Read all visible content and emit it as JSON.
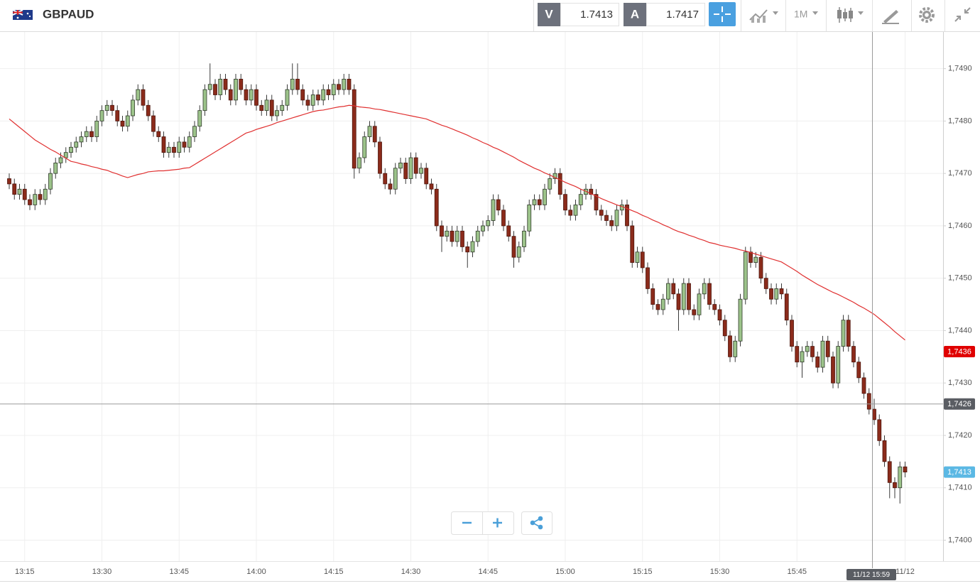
{
  "toolbar": {
    "symbol": "GBPAUD",
    "sell_label": "V",
    "sell_price": "1.7413",
    "buy_label": "A",
    "buy_price": "1.7417",
    "timeframe": "1M"
  },
  "chart_data": {
    "type": "candlestick",
    "categories": [
      null,
      null,
      null,
      "13:15",
      null,
      null,
      null,
      null,
      null,
      null,
      null,
      null,
      null,
      null,
      null,
      null,
      null,
      null,
      "13:30",
      null,
      null,
      null,
      null,
      null,
      null,
      null,
      null,
      null,
      null,
      null,
      null,
      null,
      null,
      "13:45",
      null,
      null,
      null,
      null,
      null,
      null,
      null,
      null,
      null,
      null,
      null,
      null,
      null,
      null,
      "14:00",
      null,
      null,
      null,
      null,
      null,
      null,
      null,
      null,
      null,
      null,
      null,
      null,
      null,
      null,
      "14:15",
      null,
      null,
      null,
      null,
      null,
      null,
      null,
      null,
      null,
      null,
      null,
      null,
      null,
      null,
      "14:30",
      null,
      null,
      null,
      null,
      null,
      null,
      null,
      null,
      null,
      null,
      null,
      null,
      null,
      null,
      "14:45",
      null,
      null,
      null,
      null,
      null,
      null,
      null,
      null,
      null,
      null,
      null,
      null,
      null,
      null,
      "15:00",
      null,
      null,
      null,
      null,
      null,
      null,
      null,
      null,
      null,
      null,
      null,
      null,
      null,
      null,
      "15:15",
      null,
      null,
      null,
      null,
      null,
      null,
      null,
      null,
      null,
      null,
      null,
      null,
      null,
      null,
      "15:30",
      null,
      null,
      null,
      null,
      null,
      null,
      null,
      null,
      null,
      null,
      null,
      null,
      null,
      null,
      "15:45",
      null,
      null,
      null,
      null,
      null,
      null,
      null,
      null,
      null,
      null,
      null,
      null,
      null,
      null,
      null,
      null,
      null,
      null,
      null,
      null,
      "11/12"
    ],
    "open": [
      1.7469,
      1.7468,
      1.7466,
      1.7467,
      1.7465,
      1.7464,
      1.7466,
      1.7465,
      1.7467,
      1.747,
      1.7472,
      1.7473,
      1.7474,
      1.7475,
      1.7476,
      1.7477,
      1.7478,
      1.7477,
      1.748,
      1.7482,
      1.7483,
      1.7482,
      1.748,
      1.7479,
      1.7481,
      1.7484,
      1.7486,
      1.7483,
      1.7481,
      1.7478,
      1.7477,
      1.7474,
      1.7475,
      1.7474,
      1.7476,
      1.7475,
      1.7477,
      1.7479,
      1.7482,
      1.7486,
      1.7487,
      1.7485,
      1.7488,
      1.7486,
      1.7484,
      1.7488,
      1.7486,
      1.7484,
      1.7486,
      1.7483,
      1.7482,
      1.7484,
      1.7481,
      1.7482,
      1.7483,
      1.7486,
      1.7488,
      1.7486,
      1.7484,
      1.7483,
      1.7485,
      1.7484,
      1.7486,
      1.7485,
      1.7487,
      1.7486,
      1.7488,
      1.7486,
      1.7471,
      1.7473,
      1.7477,
      1.7479,
      1.7476,
      1.747,
      1.7468,
      1.7467,
      1.7471,
      1.7472,
      1.7469,
      1.7473,
      1.747,
      1.7471,
      1.7468,
      1.7467,
      1.746,
      1.7458,
      1.7459,
      1.7457,
      1.7459,
      1.7456,
      1.7455,
      1.7457,
      1.7459,
      1.746,
      1.7461,
      1.7465,
      1.7463,
      1.746,
      1.7458,
      1.7454,
      1.7456,
      1.7459,
      1.7464,
      1.7465,
      1.7464,
      1.7467,
      1.7469,
      1.747,
      1.7466,
      1.7463,
      1.7462,
      1.7464,
      1.7466,
      1.7467,
      1.7466,
      1.7463,
      1.7462,
      1.7461,
      1.746,
      1.7463,
      1.7464,
      1.746,
      1.7453,
      1.7455,
      1.7452,
      1.7448,
      1.7445,
      1.7444,
      1.7446,
      1.7449,
      1.7447,
      1.7444,
      1.7449,
      1.7444,
      1.7443,
      1.7447,
      1.7449,
      1.7445,
      1.7444,
      1.7442,
      1.7439,
      1.7435,
      1.7438,
      1.7446,
      1.7455,
      1.7453,
      1.7454,
      1.745,
      1.7448,
      1.7446,
      1.7448,
      1.7447,
      1.7442,
      1.7437,
      1.7434,
      1.7436,
      1.7437,
      1.7435,
      1.7433,
      1.7438,
      1.7435,
      1.743,
      1.7437,
      1.7442,
      1.7437,
      1.7434,
      1.7431,
      1.7428,
      1.7425,
      1.7423,
      1.7419,
      1.7415,
      1.7411,
      1.741,
      1.7414
    ],
    "high": [
      1.747,
      1.7469,
      1.7468,
      1.7468,
      1.7466,
      1.7467,
      1.7467,
      1.7468,
      1.7471,
      1.7473,
      1.7474,
      1.7475,
      1.7476,
      1.7477,
      1.7478,
      1.7479,
      1.7479,
      1.7481,
      1.7483,
      1.7484,
      1.7484,
      1.7483,
      1.7481,
      1.7482,
      1.7485,
      1.7487,
      1.7487,
      1.7484,
      1.7482,
      1.7479,
      1.7478,
      1.7476,
      1.7476,
      1.7477,
      1.7477,
      1.7478,
      1.748,
      1.7483,
      1.7487,
      1.7491,
      1.7488,
      1.7489,
      1.7489,
      1.7487,
      1.7489,
      1.7489,
      1.7487,
      1.7487,
      1.7487,
      1.7484,
      1.7485,
      1.7485,
      1.7483,
      1.7484,
      1.7487,
      1.7491,
      1.7491,
      1.7487,
      1.7485,
      1.7486,
      1.7486,
      1.7487,
      1.7487,
      1.7488,
      1.7488,
      1.7489,
      1.7489,
      1.7487,
      1.7474,
      1.7478,
      1.748,
      1.748,
      1.7477,
      1.7471,
      1.7469,
      1.7472,
      1.7473,
      1.7473,
      1.7474,
      1.7474,
      1.7472,
      1.7472,
      1.7469,
      1.7468,
      1.7461,
      1.746,
      1.746,
      1.746,
      1.746,
      1.7457,
      1.7458,
      1.746,
      1.7461,
      1.7462,
      1.7466,
      1.7466,
      1.7464,
      1.7461,
      1.7459,
      1.7457,
      1.746,
      1.7465,
      1.7466,
      1.7466,
      1.7468,
      1.747,
      1.7471,
      1.7471,
      1.7467,
      1.7464,
      1.7465,
      1.7467,
      1.7468,
      1.7468,
      1.7467,
      1.7464,
      1.7463,
      1.7462,
      1.7464,
      1.7465,
      1.7465,
      1.7461,
      1.7456,
      1.7456,
      1.7453,
      1.7449,
      1.7446,
      1.7447,
      1.745,
      1.745,
      1.7448,
      1.745,
      1.745,
      1.7445,
      1.7448,
      1.745,
      1.745,
      1.7446,
      1.7445,
      1.7443,
      1.744,
      1.7439,
      1.7447,
      1.7456,
      1.7456,
      1.7455,
      1.7455,
      1.7451,
      1.7449,
      1.7449,
      1.7449,
      1.7448,
      1.7443,
      1.7438,
      1.7437,
      1.7438,
      1.7438,
      1.7436,
      1.7439,
      1.7439,
      1.7436,
      1.7438,
      1.7443,
      1.7443,
      1.7438,
      1.7435,
      1.7432,
      1.7429,
      1.7427,
      1.7424,
      1.742,
      1.7416,
      1.7412,
      1.7415,
      1.7415
    ],
    "low": [
      1.7467,
      1.7465,
      1.7465,
      1.7464,
      1.7463,
      1.7463,
      1.7464,
      1.7464,
      1.7466,
      1.7469,
      1.7471,
      1.7472,
      1.7473,
      1.7474,
      1.7475,
      1.7476,
      1.7476,
      1.7476,
      1.7479,
      1.7481,
      1.7481,
      1.7479,
      1.7478,
      1.7478,
      1.748,
      1.7483,
      1.7482,
      1.748,
      1.7477,
      1.7476,
      1.7473,
      1.7473,
      1.7473,
      1.7473,
      1.7474,
      1.7474,
      1.7476,
      1.7478,
      1.7481,
      1.7485,
      1.7484,
      1.7484,
      1.7485,
      1.7483,
      1.7483,
      1.7485,
      1.7483,
      1.7483,
      1.7482,
      1.7481,
      1.7481,
      1.748,
      1.748,
      1.7481,
      1.7482,
      1.7485,
      1.7485,
      1.7483,
      1.7482,
      1.7482,
      1.7483,
      1.7483,
      1.7484,
      1.7484,
      1.7485,
      1.7485,
      1.7485,
      1.7469,
      1.747,
      1.7472,
      1.7476,
      1.7475,
      1.7469,
      1.7467,
      1.7466,
      1.7466,
      1.747,
      1.7468,
      1.7468,
      1.7469,
      1.7469,
      1.7467,
      1.7466,
      1.7459,
      1.7455,
      1.7457,
      1.7456,
      1.7456,
      1.7455,
      1.7452,
      1.7454,
      1.7456,
      1.7458,
      1.7459,
      1.746,
      1.7462,
      1.7459,
      1.7457,
      1.7452,
      1.7453,
      1.7455,
      1.7458,
      1.7463,
      1.7463,
      1.7463,
      1.7466,
      1.7468,
      1.7465,
      1.7462,
      1.7461,
      1.7461,
      1.7463,
      1.7465,
      1.7465,
      1.7462,
      1.7461,
      1.746,
      1.7459,
      1.7459,
      1.7462,
      1.7459,
      1.7452,
      1.7452,
      1.7451,
      1.7447,
      1.7444,
      1.7443,
      1.7443,
      1.7445,
      1.7446,
      1.744,
      1.7443,
      1.7443,
      1.7442,
      1.7442,
      1.7446,
      1.7444,
      1.7443,
      1.7441,
      1.7438,
      1.7434,
      1.7434,
      1.7437,
      1.7445,
      1.7452,
      1.7452,
      1.7449,
      1.7447,
      1.7445,
      1.7445,
      1.7446,
      1.7441,
      1.7436,
      1.7433,
      1.7431,
      1.7435,
      1.7434,
      1.7432,
      1.7432,
      1.7434,
      1.7429,
      1.7429,
      1.7436,
      1.7436,
      1.7433,
      1.743,
      1.7427,
      1.7424,
      1.7422,
      1.7418,
      1.7414,
      1.7408,
      1.7408,
      1.7407,
      1.7412
    ],
    "close": [
      1.7468,
      1.7466,
      1.7467,
      1.7465,
      1.7464,
      1.7466,
      1.7465,
      1.7467,
      1.747,
      1.7472,
      1.7473,
      1.7474,
      1.7475,
      1.7476,
      1.7477,
      1.7478,
      1.7477,
      1.748,
      1.7482,
      1.7483,
      1.7482,
      1.748,
      1.7479,
      1.7481,
      1.7484,
      1.7486,
      1.7483,
      1.7481,
      1.7478,
      1.7477,
      1.7474,
      1.7475,
      1.7474,
      1.7476,
      1.7475,
      1.7477,
      1.7479,
      1.7482,
      1.7486,
      1.7487,
      1.7485,
      1.7488,
      1.7486,
      1.7484,
      1.7488,
      1.7486,
      1.7484,
      1.7486,
      1.7483,
      1.7482,
      1.7484,
      1.7481,
      1.7482,
      1.7483,
      1.7486,
      1.7488,
      1.7486,
      1.7484,
      1.7483,
      1.7485,
      1.7484,
      1.7486,
      1.7485,
      1.7487,
      1.7486,
      1.7488,
      1.7486,
      1.7471,
      1.7473,
      1.7477,
      1.7479,
      1.7476,
      1.747,
      1.7468,
      1.7467,
      1.7471,
      1.7472,
      1.7469,
      1.7473,
      1.747,
      1.7471,
      1.7468,
      1.7467,
      1.746,
      1.7458,
      1.7459,
      1.7457,
      1.7459,
      1.7456,
      1.7455,
      1.7457,
      1.7459,
      1.746,
      1.7461,
      1.7465,
      1.7463,
      1.746,
      1.7458,
      1.7454,
      1.7456,
      1.7459,
      1.7464,
      1.7465,
      1.7464,
      1.7467,
      1.7469,
      1.747,
      1.7466,
      1.7463,
      1.7462,
      1.7464,
      1.7466,
      1.7467,
      1.7466,
      1.7463,
      1.7462,
      1.7461,
      1.746,
      1.7463,
      1.7464,
      1.746,
      1.7453,
      1.7455,
      1.7452,
      1.7448,
      1.7445,
      1.7444,
      1.7446,
      1.7449,
      1.7447,
      1.7444,
      1.7449,
      1.7444,
      1.7443,
      1.7447,
      1.7449,
      1.7445,
      1.7444,
      1.7442,
      1.7439,
      1.7435,
      1.7438,
      1.7446,
      1.7455,
      1.7453,
      1.7454,
      1.745,
      1.7448,
      1.7446,
      1.7448,
      1.7447,
      1.7442,
      1.7437,
      1.7434,
      1.7436,
      1.7437,
      1.7435,
      1.7433,
      1.7438,
      1.7435,
      1.743,
      1.7437,
      1.7442,
      1.7437,
      1.7434,
      1.7431,
      1.7428,
      1.7425,
      1.7423,
      1.7419,
      1.7415,
      1.7411,
      1.741,
      1.7414,
      1.7413
    ],
    "up_color": "#9cc38a",
    "down_color": "#8b2b1b",
    "overlay": {
      "color": "#e03030",
      "values": [
        1.74804,
        1.74796,
        1.74788,
        1.7478,
        1.74772,
        1.74764,
        1.74758,
        1.74752,
        1.74746,
        1.74741,
        1.74735,
        1.74729,
        1.74723,
        1.74721,
        1.74718,
        1.74716,
        1.74713,
        1.74711,
        1.74708,
        1.74706,
        1.74702,
        1.74699,
        1.74695,
        1.74692,
        1.74695,
        1.74698,
        1.747,
        1.74703,
        1.74704,
        1.74705,
        1.74705,
        1.74706,
        1.74707,
        1.74708,
        1.7471,
        1.74711,
        1.74717,
        1.74723,
        1.74729,
        1.74735,
        1.74741,
        1.74747,
        1.74753,
        1.74759,
        1.74765,
        1.74771,
        1.74777,
        1.7478,
        1.74784,
        1.74787,
        1.7479,
        1.74793,
        1.74797,
        1.748,
        1.74803,
        1.74806,
        1.74809,
        1.74812,
        1.74815,
        1.74818,
        1.7482,
        1.74821,
        1.74823,
        1.74825,
        1.74827,
        1.74828,
        1.7483,
        1.74829,
        1.74827,
        1.74826,
        1.74825,
        1.74823,
        1.74822,
        1.7482,
        1.74818,
        1.74816,
        1.74814,
        1.74812,
        1.7481,
        1.74808,
        1.74806,
        1.74804,
        1.748,
        1.74796,
        1.74792,
        1.74789,
        1.74785,
        1.74781,
        1.74777,
        1.74773,
        1.74768,
        1.74764,
        1.74759,
        1.74755,
        1.7475,
        1.74746,
        1.74741,
        1.74736,
        1.74731,
        1.74725,
        1.7472,
        1.74715,
        1.7471,
        1.74706,
        1.74701,
        1.74697,
        1.74692,
        1.74688,
        1.74683,
        1.74679,
        1.74675,
        1.7467,
        1.74666,
        1.74661,
        1.74657,
        1.74652,
        1.74648,
        1.74644,
        1.7464,
        1.74637,
        1.74633,
        1.74629,
        1.74625,
        1.7462,
        1.74616,
        1.74611,
        1.74607,
        1.74602,
        1.74598,
        1.74593,
        1.74589,
        1.74586,
        1.74582,
        1.74579,
        1.74575,
        1.74572,
        1.74568,
        1.74566,
        1.74563,
        1.74561,
        1.74559,
        1.74557,
        1.74554,
        1.74552,
        1.74549,
        1.74546,
        1.74543,
        1.7454,
        1.74537,
        1.74534,
        1.74531,
        1.74525,
        1.74519,
        1.74513,
        1.74506,
        1.745,
        1.74494,
        1.74488,
        1.74483,
        1.74478,
        1.74473,
        1.74469,
        1.74464,
        1.74459,
        1.74454,
        1.74448,
        1.74443,
        1.74437,
        1.74431,
        1.74423,
        1.74415,
        1.74407,
        1.74398,
        1.7439,
        1.74382
      ]
    },
    "ylim": [
      1.7396,
      1.7497
    ],
    "yticks": [
      {
        "value": 1.74,
        "label": "1,7400"
      },
      {
        "value": 1.741,
        "label": "1,7410"
      },
      {
        "value": 1.742,
        "label": "1,7420"
      },
      {
        "value": 1.743,
        "label": "1,7430"
      },
      {
        "value": 1.744,
        "label": "1,7440"
      },
      {
        "value": 1.745,
        "label": "1,7450"
      },
      {
        "value": 1.746,
        "label": "1,7460"
      },
      {
        "value": 1.747,
        "label": "1,7470"
      },
      {
        "value": 1.748,
        "label": "1,7480"
      },
      {
        "value": 1.749,
        "label": "1,7490"
      }
    ],
    "grid": true,
    "markers": [
      {
        "value": 1.7436,
        "label": "1,7436",
        "color": "#e00000"
      },
      {
        "value": 1.7413,
        "label": "1,7413",
        "color": "#5bb8e4"
      }
    ],
    "crosshair": {
      "value": 1.7426,
      "label": "1,7426",
      "time_label": "11/12 15:59"
    }
  }
}
